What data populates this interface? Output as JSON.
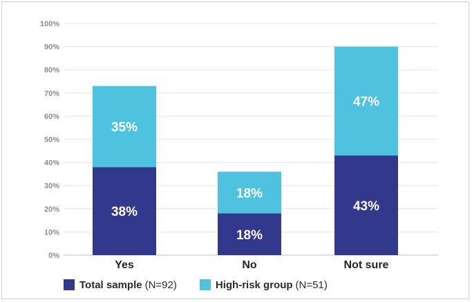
{
  "chart_data": {
    "type": "bar",
    "stacked": true,
    "categories": [
      "Yes",
      "No",
      "Not sure"
    ],
    "series": [
      {
        "name": "Total sample",
        "n_label": "(N=92)",
        "color": "#32398d",
        "values": [
          38,
          18,
          43
        ],
        "labels": [
          "38%",
          "18%",
          "43%"
        ]
      },
      {
        "name": "High-risk group",
        "n_label": "(N=51)",
        "color": "#4ec2df",
        "values": [
          35,
          18,
          47
        ],
        "labels": [
          "35%",
          "18%",
          "47%"
        ]
      }
    ],
    "ylim": [
      0,
      100
    ],
    "y_ticks": [
      "0%",
      "10%",
      "20%",
      "30%",
      "40%",
      "50%",
      "60%",
      "70%",
      "80%",
      "90%",
      "100%"
    ],
    "grid": true,
    "legend_position": "bottom",
    "title": "",
    "xlabel": "",
    "ylabel": ""
  }
}
